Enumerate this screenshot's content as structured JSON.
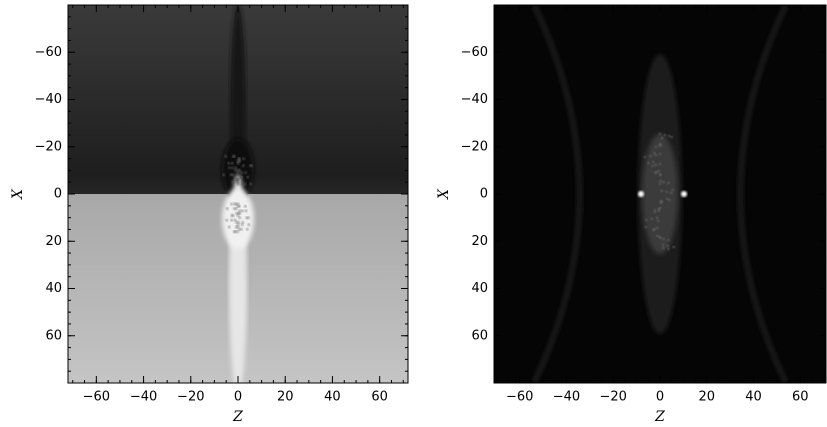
{
  "chart_data": [
    {
      "type": "heatmap",
      "colormap": "gray",
      "xlabel": "Z",
      "ylabel": "X",
      "xlim": [
        -72,
        72
      ],
      "ylim": [
        -80,
        80
      ],
      "y_inverted": true,
      "xticks": [
        {
          "value": -60,
          "label": "−60"
        },
        {
          "value": -40,
          "label": "−40"
        },
        {
          "value": -20,
          "label": "−20"
        },
        0,
        20,
        40,
        60
      ],
      "yticks": [
        {
          "value": -60,
          "label": "−60"
        },
        {
          "value": -40,
          "label": "−40"
        },
        {
          "value": -20,
          "label": "−20"
        },
        0,
        20,
        40,
        60
      ]
    },
    {
      "type": "heatmap",
      "colormap": "gray",
      "xlabel": "Z",
      "ylabel": "X",
      "xlim": [
        -71,
        71
      ],
      "ylim": [
        -80,
        80
      ],
      "y_inverted": true,
      "xticks": [
        {
          "value": -60,
          "label": "−60"
        },
        {
          "value": -40,
          "label": "−40"
        },
        {
          "value": -20,
          "label": "−20"
        },
        0,
        20,
        40,
        60
      ],
      "yticks": [
        {
          "value": -60,
          "label": "−60"
        },
        {
          "value": -40,
          "label": "−40"
        },
        {
          "value": -20,
          "label": "−20"
        },
        0,
        20,
        40,
        60
      ]
    }
  ]
}
